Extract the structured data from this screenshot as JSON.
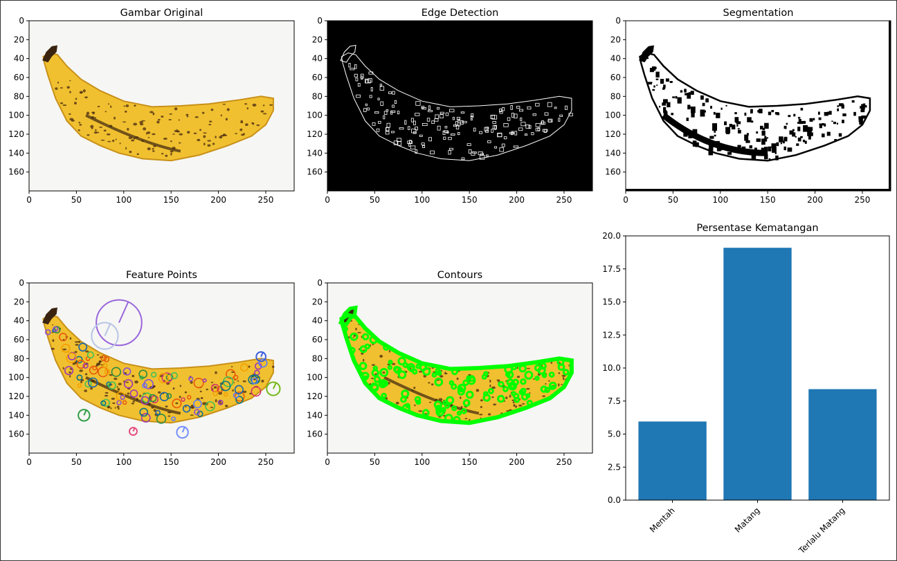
{
  "colors": {
    "bar": "#1f77b4",
    "edge_bg": "#000000",
    "contour": "#00ff00",
    "banana": "#f0c030",
    "banana_dark": "#c89018",
    "spot": "#4a2a10"
  },
  "panels": [
    {
      "title": "Gambar Original",
      "kind": "original"
    },
    {
      "title": "Edge Detection",
      "kind": "edges"
    },
    {
      "title": "Segmentation",
      "kind": "segmentation"
    },
    {
      "title": "Feature Points",
      "kind": "features"
    },
    {
      "title": "Contours",
      "kind": "contours"
    }
  ],
  "image_axes": {
    "x_ticks": [
      "0",
      "50",
      "100",
      "150",
      "200",
      "250"
    ],
    "y_ticks": [
      "0",
      "20",
      "40",
      "60",
      "80",
      "100",
      "120",
      "140",
      "160"
    ]
  },
  "chart_data": {
    "type": "bar",
    "title": "Persentase Kematangan",
    "categories": [
      "Mentah",
      "Matang",
      "Terlalu Matang"
    ],
    "values": [
      5.95,
      19.1,
      8.4
    ],
    "ylim": [
      0,
      20
    ],
    "y_ticks": [
      "0.0",
      "2.5",
      "5.0",
      "7.5",
      "10.0",
      "12.5",
      "15.0",
      "17.5",
      "20.0"
    ],
    "xlabel": "",
    "ylabel": "",
    "grid": false
  }
}
